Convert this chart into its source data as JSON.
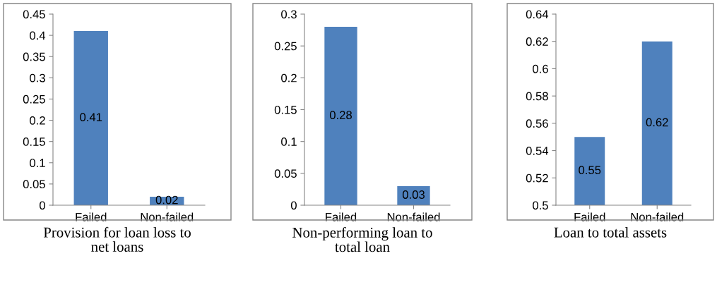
{
  "chart_data": [
    {
      "type": "bar",
      "xlabel": "Provision for loan loss to\nnet loans",
      "categories": [
        "Failed",
        "Non-failed"
      ],
      "values": [
        0.41,
        0.02
      ],
      "color": "#4f81bd",
      "ylim": [
        0,
        0.45
      ],
      "yticks": [
        0,
        0.05,
        0.1,
        0.15,
        0.2,
        0.25,
        0.3,
        0.35,
        0.4,
        0.45
      ],
      "data_labels": true,
      "grid": false,
      "legend": false
    },
    {
      "type": "bar",
      "xlabel": "Non-performing loan to\ntotal loan",
      "categories": [
        "Failed",
        "Non-failed"
      ],
      "values": [
        0.28,
        0.03
      ],
      "color": "#4f81bd",
      "ylim": [
        0,
        0.3
      ],
      "yticks": [
        0,
        0.05,
        0.1,
        0.15,
        0.2,
        0.25,
        0.3
      ],
      "data_labels": true,
      "grid": false,
      "legend": false
    },
    {
      "type": "bar",
      "xlabel": "Loan to total assets",
      "categories": [
        "Failed",
        "Non-failed"
      ],
      "values": [
        0.55,
        0.62
      ],
      "color": "#4f81bd",
      "ylim": [
        0.5,
        0.64
      ],
      "yticks": [
        0.5,
        0.52,
        0.54,
        0.56,
        0.58,
        0.6,
        0.62,
        0.64
      ],
      "data_labels": true,
      "grid": false,
      "legend": false
    }
  ]
}
